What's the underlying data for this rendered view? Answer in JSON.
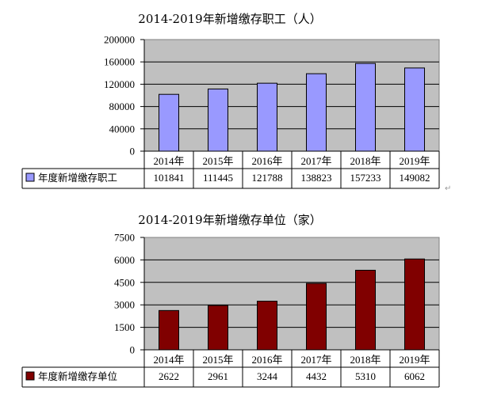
{
  "charts": [
    {
      "title": "2014-2019年新增缴存职工（人）",
      "colors": {
        "bar": "#9999ff",
        "plot_bg": "#c0c0c0"
      }
    },
    {
      "title": "2014-2019年新增缴存单位（家）",
      "colors": {
        "bar": "#800000",
        "plot_bg": "#c0c0c0"
      }
    }
  ],
  "chart_data": [
    {
      "type": "bar",
      "title": "2014-2019年新增缴存职工（人）",
      "categories": [
        "2014年",
        "2015年",
        "2016年",
        "2017年",
        "2018年",
        "2019年"
      ],
      "series": [
        {
          "name": "年度新增缴存职工",
          "values": [
            101841,
            111445,
            121788,
            138823,
            157233,
            149082
          ]
        }
      ],
      "ylim": [
        0,
        200000
      ],
      "yticks": [
        "0",
        "40000",
        "80000",
        "120000",
        "160000",
        "200000"
      ],
      "ytick_values": [
        0,
        40000,
        80000,
        120000,
        160000,
        200000
      ],
      "grid": true,
      "legend": "data-table"
    },
    {
      "type": "bar",
      "title": "2014-2019年新增缴存单位（家）",
      "categories": [
        "2014年",
        "2015年",
        "2016年",
        "2017年",
        "2018年",
        "2019年"
      ],
      "series": [
        {
          "name": "年度新增缴存单位",
          "values": [
            2622,
            2961,
            3244,
            4432,
            5310,
            6062
          ]
        }
      ],
      "ylim": [
        0,
        7500
      ],
      "yticks": [
        "0",
        "1500",
        "3000",
        "4500",
        "6000",
        "7500"
      ],
      "ytick_values": [
        0,
        1500,
        3000,
        4500,
        6000,
        7500
      ],
      "grid": true,
      "legend": "data-table"
    }
  ],
  "paragraph_mark": "↵"
}
